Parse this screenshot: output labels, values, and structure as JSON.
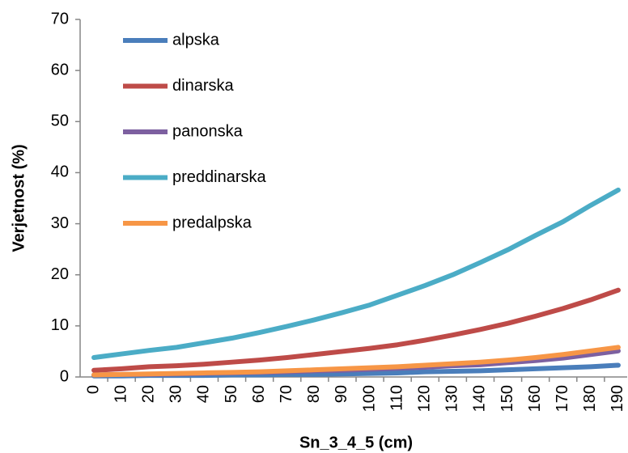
{
  "chart_data": {
    "type": "line",
    "x_label": "Sn_3_4_5 (cm)",
    "y_label": "Verjetnost (%)",
    "categories": [
      "0",
      "10",
      "20",
      "30",
      "40",
      "50",
      "60",
      "70",
      "80",
      "90",
      "100",
      "110",
      "120",
      "130",
      "140",
      "150",
      "160",
      "170",
      "180",
      "190"
    ],
    "series": [
      {
        "name": "alpska",
        "color": "#4a7ebb",
        "values": [
          0.2,
          0.2,
          0.3,
          0.3,
          0.3,
          0.4,
          0.4,
          0.5,
          0.5,
          0.6,
          0.7,
          0.8,
          1.0,
          1.1,
          1.2,
          1.4,
          1.6,
          1.8,
          2.0,
          2.3
        ]
      },
      {
        "name": "dinarska",
        "color": "#be4b48",
        "values": [
          1.3,
          1.6,
          2.0,
          2.2,
          2.5,
          2.9,
          3.3,
          3.8,
          4.4,
          5.0,
          5.6,
          6.3,
          7.2,
          8.2,
          9.3,
          10.5,
          11.9,
          13.4,
          15.1,
          17.0
        ]
      },
      {
        "name": "panonska",
        "color": "#7d60a0",
        "values": [
          0.4,
          0.5,
          0.5,
          0.6,
          0.7,
          0.8,
          0.9,
          1.0,
          1.2,
          1.3,
          1.5,
          1.7,
          1.9,
          2.2,
          2.4,
          2.8,
          3.2,
          3.7,
          4.4,
          5.1
        ]
      },
      {
        "name": "preddinarska",
        "color": "#4bacc6",
        "values": [
          3.8,
          4.5,
          5.2,
          5.8,
          6.7,
          7.6,
          8.7,
          9.9,
          11.2,
          12.6,
          14.1,
          16.0,
          17.9,
          20.0,
          22.4,
          24.9,
          27.7,
          30.4,
          33.6,
          36.6
        ]
      },
      {
        "name": "predalpska",
        "color": "#f79646",
        "values": [
          0.4,
          0.5,
          0.6,
          0.7,
          0.8,
          0.9,
          1.0,
          1.2,
          1.4,
          1.6,
          1.8,
          2.0,
          2.3,
          2.6,
          2.9,
          3.3,
          3.8,
          4.4,
          5.1,
          5.8
        ]
      }
    ],
    "ylim": [
      0,
      70
    ],
    "yticks": [
      0,
      10,
      20,
      30,
      40,
      50,
      60,
      70
    ],
    "grid": false,
    "legend": "top-left"
  }
}
